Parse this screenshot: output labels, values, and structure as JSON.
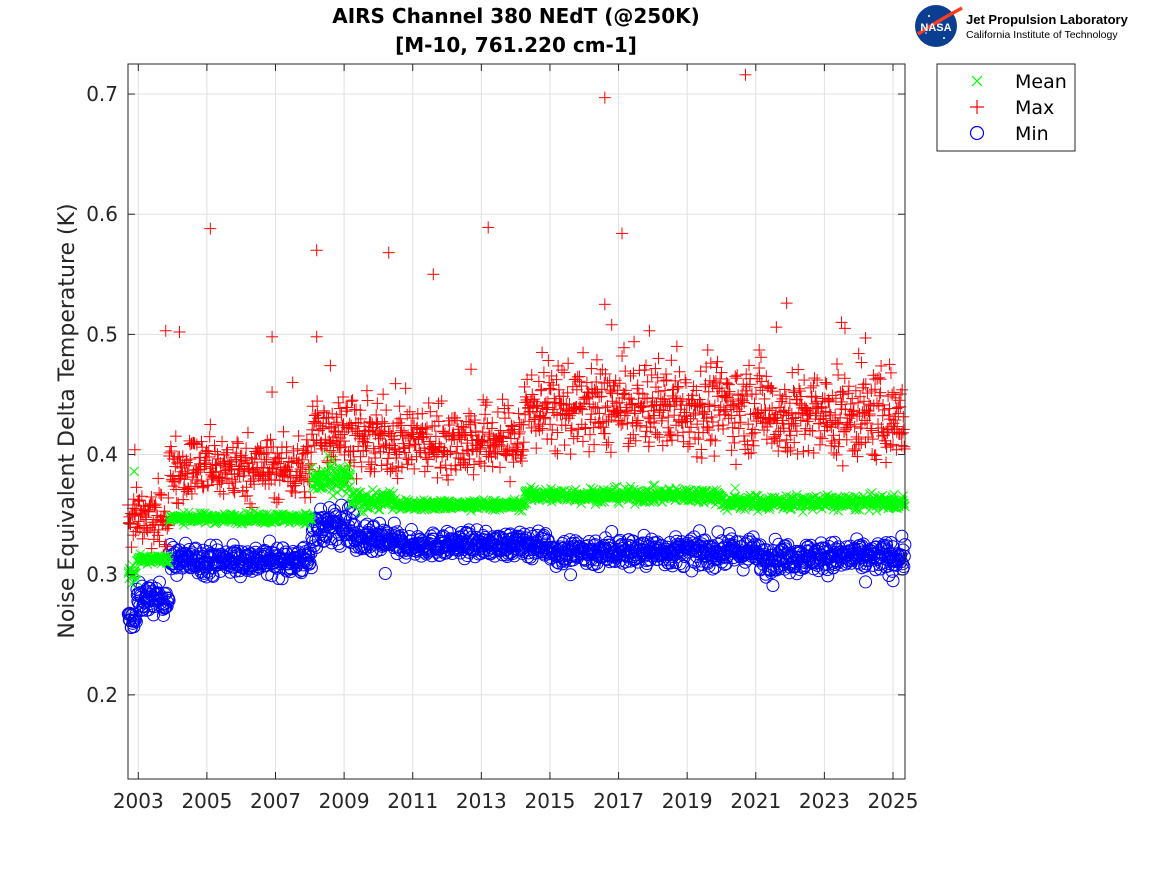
{
  "chart_data": {
    "type": "scatter",
    "title": [
      "AIRS Channel 380 NEdT (@250K)",
      "[M-10, 761.220 cm-1]"
    ],
    "xlabel": "",
    "ylabel": "Noise Equivalent Delta Temperature (K)",
    "xlim": [
      2002.7,
      2025.35
    ],
    "ylim": [
      0.13,
      0.725
    ],
    "xticks": [
      2003,
      2005,
      2007,
      2009,
      2011,
      2013,
      2015,
      2017,
      2019,
      2021,
      2023,
      2025
    ],
    "xtick_labels": [
      "2003",
      "2005",
      "2007",
      "2009",
      "2011",
      "2013",
      "2015",
      "2017",
      "2019",
      "2021",
      "2023",
      "2025"
    ],
    "yticks": [
      0.2,
      0.3,
      0.4,
      0.5,
      0.6,
      0.7
    ],
    "ytick_labels": [
      "0.2",
      "0.3",
      "0.4",
      "0.5",
      "0.6",
      "0.7"
    ],
    "grid": true,
    "legend_position": "outside-top-right",
    "series": [
      {
        "name": "Mean",
        "marker": "x",
        "color": "#00ff00",
        "segments": [
          {
            "x0": 2002.7,
            "x1": 2002.95,
            "y": 0.3,
            "jitter": 0.004
          },
          {
            "x0": 2002.95,
            "x1": 2003.9,
            "y": 0.313,
            "jitter": 0.002
          },
          {
            "x0": 2003.9,
            "x1": 2008.05,
            "y": 0.347,
            "jitter": 0.002
          },
          {
            "x0": 2008.05,
            "x1": 2009.2,
            "y": 0.378,
            "jitter": 0.007
          },
          {
            "x0": 2009.2,
            "x1": 2010.5,
            "y": 0.362,
            "jitter": 0.004
          },
          {
            "x0": 2010.5,
            "x1": 2014.25,
            "y": 0.358,
            "jitter": 0.002
          },
          {
            "x0": 2014.25,
            "x1": 2020.0,
            "y": 0.366,
            "jitter": 0.003
          },
          {
            "x0": 2020.0,
            "x1": 2025.35,
            "y": 0.36,
            "jitter": 0.003
          }
        ],
        "outliers": [
          [
            2002.88,
            0.386
          ],
          [
            2012.7,
            0.353
          ],
          [
            2020.4,
            0.372
          ]
        ]
      },
      {
        "name": "Max",
        "marker": "+",
        "color": "#ff0000",
        "segments": [
          {
            "x0": 2002.7,
            "x1": 2003.9,
            "y": 0.346,
            "jitter": 0.012
          },
          {
            "x0": 2003.9,
            "x1": 2008.05,
            "y": 0.389,
            "jitter": 0.013
          },
          {
            "x0": 2008.05,
            "x1": 2009.3,
            "y": 0.42,
            "jitter": 0.015
          },
          {
            "x0": 2009.3,
            "x1": 2014.25,
            "y": 0.412,
            "jitter": 0.015
          },
          {
            "x0": 2014.25,
            "x1": 2021.5,
            "y": 0.44,
            "jitter": 0.018
          },
          {
            "x0": 2021.5,
            "x1": 2025.35,
            "y": 0.432,
            "jitter": 0.018
          }
        ],
        "outliers": [
          [
            2002.9,
            0.404
          ],
          [
            2003.8,
            0.503
          ],
          [
            2004.2,
            0.502
          ],
          [
            2005.1,
            0.588
          ],
          [
            2005.1,
            0.425
          ],
          [
            2006.9,
            0.498
          ],
          [
            2006.9,
            0.452
          ],
          [
            2007.5,
            0.46
          ],
          [
            2008.2,
            0.57
          ],
          [
            2008.2,
            0.498
          ],
          [
            2008.6,
            0.474
          ],
          [
            2010.3,
            0.568
          ],
          [
            2010.5,
            0.459
          ],
          [
            2011.6,
            0.55
          ],
          [
            2012.7,
            0.471
          ],
          [
            2013.2,
            0.589
          ],
          [
            2016.6,
            0.697
          ],
          [
            2016.6,
            0.525
          ],
          [
            2016.8,
            0.508
          ],
          [
            2017.1,
            0.584
          ],
          [
            2017.9,
            0.503
          ],
          [
            2018.7,
            0.49
          ],
          [
            2019.6,
            0.487
          ],
          [
            2020.7,
            0.716
          ],
          [
            2021.1,
            0.487
          ],
          [
            2021.9,
            0.526
          ],
          [
            2021.6,
            0.506
          ],
          [
            2023.5,
            0.51
          ],
          [
            2023.6,
            0.505
          ],
          [
            2024.2,
            0.497
          ],
          [
            2024.0,
            0.484
          ],
          [
            2024.9,
            0.475
          ],
          [
            2025.1,
            0.404
          ]
        ]
      },
      {
        "name": "Min",
        "marker": "o",
        "color": "#0000ff",
        "segments": [
          {
            "x0": 2002.7,
            "x1": 2002.95,
            "y": 0.263,
            "jitter": 0.004
          },
          {
            "x0": 2002.95,
            "x1": 2003.9,
            "y": 0.28,
            "jitter": 0.006
          },
          {
            "x0": 2003.9,
            "x1": 2008.05,
            "y": 0.312,
            "jitter": 0.006
          },
          {
            "x0": 2008.05,
            "x1": 2009.3,
            "y": 0.34,
            "jitter": 0.008
          },
          {
            "x0": 2009.3,
            "x1": 2010.5,
            "y": 0.328,
            "jitter": 0.006
          },
          {
            "x0": 2010.5,
            "x1": 2015.0,
            "y": 0.325,
            "jitter": 0.005
          },
          {
            "x0": 2015.0,
            "x1": 2021.0,
            "y": 0.319,
            "jitter": 0.006
          },
          {
            "x0": 2021.0,
            "x1": 2025.35,
            "y": 0.315,
            "jitter": 0.006
          }
        ],
        "outliers": [
          [
            2002.8,
            0.256
          ],
          [
            2010.2,
            0.301
          ],
          [
            2016.8,
            0.336
          ],
          [
            2021.5,
            0.291
          ],
          [
            2021.3,
            0.298
          ],
          [
            2024.2,
            0.294
          ],
          [
            2025.0,
            0.295
          ],
          [
            2015.6,
            0.3
          ],
          [
            2023.1,
            0.299
          ]
        ]
      }
    ]
  },
  "logo": {
    "emblem_text": "NASA",
    "name": "Jet Propulsion Laboratory",
    "subtitle": "California Institute of Technology",
    "emblem_color": "#0b3d91",
    "swoosh_color": "#fc3d21"
  }
}
